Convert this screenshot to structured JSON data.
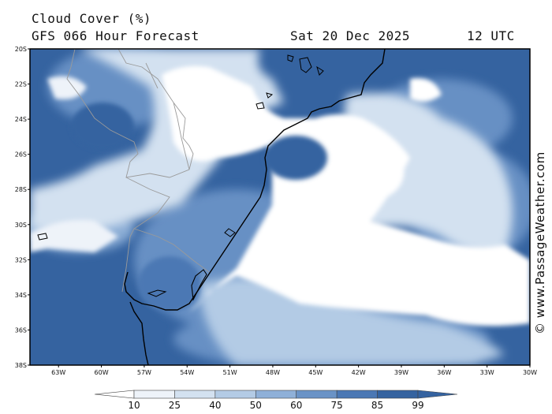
{
  "header": {
    "title": "Cloud Cover (%)",
    "forecast": "GFS 066 Hour Forecast",
    "date": "Sat 20 Dec 2025",
    "time": "12 UTC"
  },
  "map": {
    "lat_range": [
      -38,
      -20
    ],
    "lon_range": [
      -65,
      -30
    ],
    "lat_labels": [
      "20S",
      "22S",
      "24S",
      "26S",
      "28S",
      "30S",
      "32S",
      "34S",
      "36S",
      "38S"
    ],
    "lon_labels": [
      "63W",
      "60W",
      "57W",
      "54W",
      "51W",
      "48W",
      "45W",
      "42W",
      "39W",
      "36W",
      "33W",
      "30W"
    ]
  },
  "legend": {
    "labels": [
      "10",
      "25",
      "40",
      "50",
      "60",
      "75",
      "85",
      "99"
    ],
    "colors": [
      "#ffffff",
      "#eef3f9",
      "#d3e1f0",
      "#b3cbe5",
      "#8fb0d8",
      "#6a93c6",
      "#4b78b4",
      "#3563a0"
    ]
  },
  "credit": "© www.PassageWeather.com",
  "colors": {
    "clear": "#ffffff",
    "deep_cloud": "#3563a0",
    "coastline": "#000000",
    "border": "#9a9a9a"
  }
}
